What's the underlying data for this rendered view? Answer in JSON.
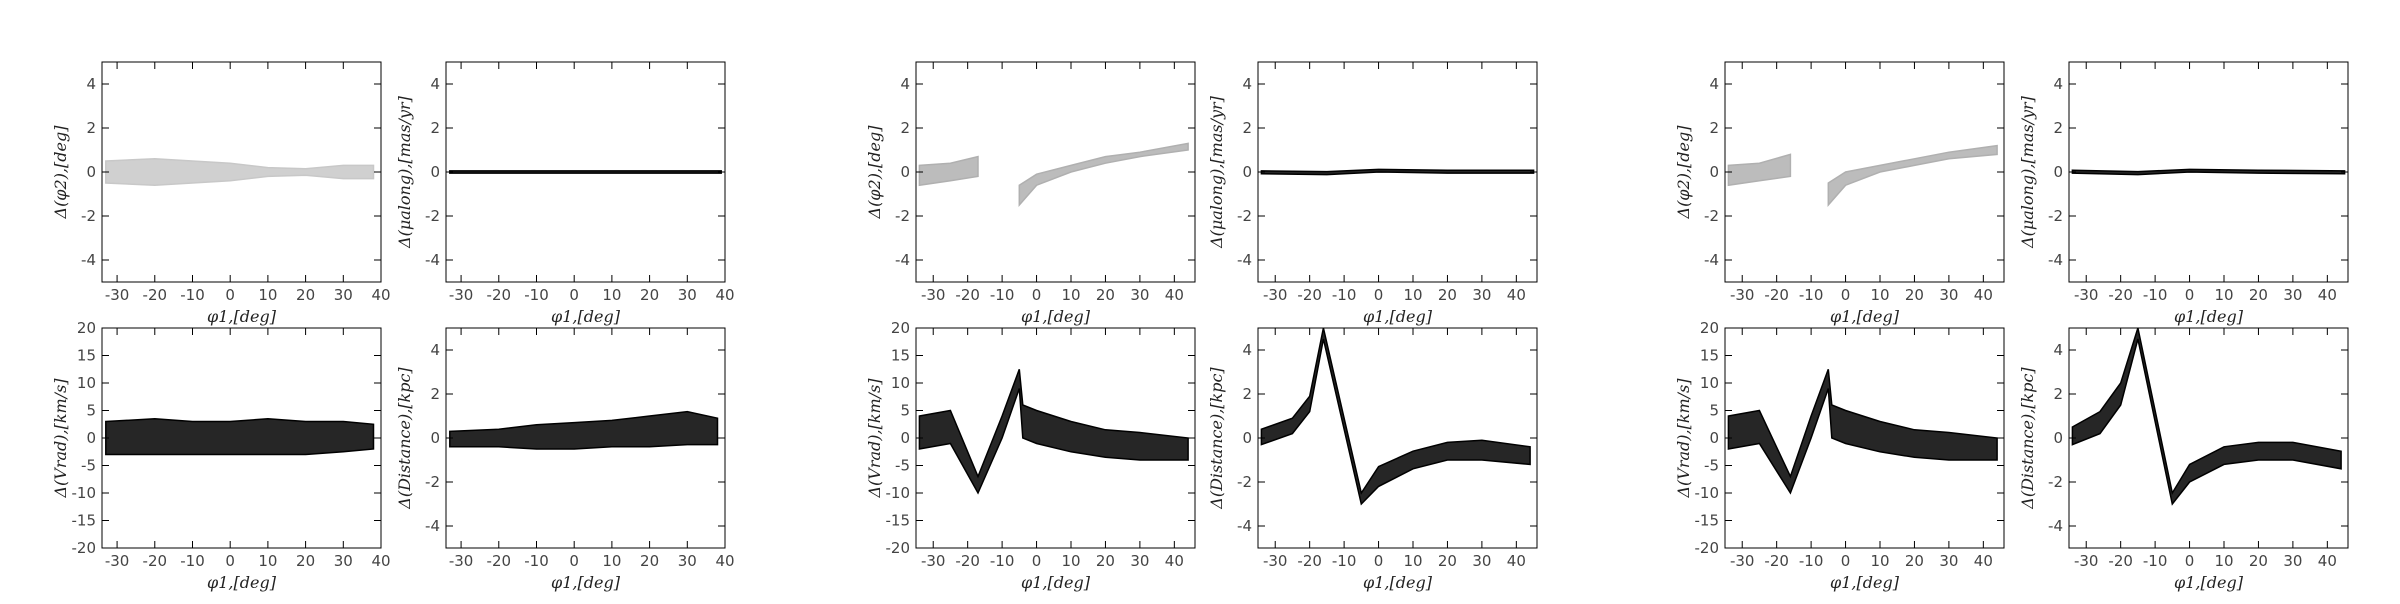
{
  "chart_data": [
    {
      "type": "band",
      "xlabel": "φ1,[deg]",
      "ylabel": "Δ(φ2),[deg]",
      "xlim": [
        -34,
        40
      ],
      "ylim": [
        -5,
        5
      ],
      "xticks": [
        -30,
        -20,
        -10,
        0,
        10,
        20,
        30,
        40
      ],
      "yticks": [
        -4,
        -2,
        0,
        2,
        4
      ],
      "color": "#c8c8c8",
      "x": [
        -33,
        -20,
        -10,
        0,
        10,
        20,
        30,
        38
      ],
      "lower": [
        -0.5,
        -0.6,
        -0.5,
        -0.4,
        -0.2,
        -0.15,
        -0.3,
        -0.3
      ],
      "upper": [
        0.5,
        0.6,
        0.5,
        0.4,
        0.2,
        0.15,
        0.3,
        0.3
      ]
    },
    {
      "type": "band",
      "xlabel": "φ1,[deg]",
      "ylabel": "Δ(μalong),[mas/yr]",
      "xlim": [
        -34,
        40
      ],
      "ylim": [
        -5,
        5
      ],
      "xticks": [
        -30,
        -20,
        -10,
        0,
        10,
        20,
        30,
        40
      ],
      "yticks": [
        -4,
        -2,
        0,
        2,
        4
      ],
      "color": "#000000",
      "x": [
        -33,
        0,
        39
      ],
      "lower": [
        -0.05,
        -0.05,
        -0.05
      ],
      "upper": [
        0.05,
        0.05,
        0.05
      ]
    },
    {
      "type": "band",
      "xlabel": "φ1,[deg]",
      "ylabel": "Δ(Vrad),[km/s]",
      "xlim": [
        -34,
        40
      ],
      "ylim": [
        -20,
        20
      ],
      "xticks": [
        -30,
        -20,
        -10,
        0,
        10,
        20,
        30,
        40
      ],
      "yticks": [
        -20,
        -15,
        -10,
        -5,
        0,
        5,
        10,
        15,
        20
      ],
      "color": "#000000",
      "x": [
        -33,
        -20,
        -10,
        0,
        10,
        20,
        30,
        38
      ],
      "lower": [
        -3,
        -3,
        -3,
        -3,
        -3,
        -3,
        -2.5,
        -2
      ],
      "upper": [
        3,
        3.5,
        3,
        3,
        3.5,
        3,
        3,
        2.5
      ]
    },
    {
      "type": "band",
      "xlabel": "φ1,[deg]",
      "ylabel": "Δ(Distance),[kpc]",
      "xlim": [
        -34,
        40
      ],
      "ylim": [
        -5,
        5
      ],
      "xticks": [
        -30,
        -20,
        -10,
        0,
        10,
        20,
        30,
        40
      ],
      "yticks": [
        -4,
        -2,
        0,
        2,
        4
      ],
      "color": "#000000",
      "x": [
        -33,
        -20,
        -10,
        0,
        10,
        20,
        30,
        38
      ],
      "lower": [
        -0.4,
        -0.4,
        -0.5,
        -0.5,
        -0.4,
        -0.4,
        -0.3,
        -0.3
      ],
      "upper": [
        0.3,
        0.4,
        0.6,
        0.7,
        0.8,
        1.0,
        1.2,
        0.9
      ]
    },
    {
      "type": "band",
      "xlabel": "φ1,[deg]",
      "ylabel": "Δ(φ2),[deg]",
      "xlim": [
        -35,
        46
      ],
      "ylim": [
        -5,
        5
      ],
      "xticks": [
        -30,
        -20,
        -10,
        0,
        10,
        20,
        30,
        40
      ],
      "yticks": [
        -4,
        -2,
        0,
        2,
        4
      ],
      "color": "#b0b0b0",
      "x": [
        -34,
        -25,
        -17,
        null,
        -5,
        0,
        10,
        20,
        30,
        44
      ],
      "lower": [
        -0.6,
        -0.4,
        -0.2,
        null,
        -1.5,
        -0.6,
        0,
        0.4,
        0.7,
        1.0
      ],
      "upper": [
        0.3,
        0.4,
        0.7,
        null,
        -0.6,
        -0.1,
        0.3,
        0.7,
        0.9,
        1.3
      ]
    },
    {
      "type": "band",
      "xlabel": "φ1,[deg]",
      "ylabel": "Δ(μalong),[mas/yr]",
      "xlim": [
        -35,
        46
      ],
      "ylim": [
        -5,
        5
      ],
      "xticks": [
        -30,
        -20,
        -10,
        0,
        10,
        20,
        30,
        40
      ],
      "yticks": [
        -4,
        -2,
        0,
        2,
        4
      ],
      "color": "#000000",
      "x": [
        -34,
        -15,
        0,
        20,
        45
      ],
      "lower": [
        -0.08,
        -0.12,
        0,
        -0.05,
        -0.05
      ],
      "upper": [
        0.05,
        0.02,
        0.12,
        0.08,
        0.08
      ]
    },
    {
      "type": "band",
      "xlabel": "φ1,[deg]",
      "ylabel": "Δ(Vrad),[km/s]",
      "xlim": [
        -35,
        46
      ],
      "ylim": [
        -20,
        20
      ],
      "xticks": [
        -30,
        -20,
        -10,
        0,
        10,
        20,
        30,
        40
      ],
      "yticks": [
        -20,
        -15,
        -10,
        -5,
        0,
        5,
        10,
        15,
        20
      ],
      "color": "#000000",
      "x": [
        -34,
        -25,
        -17,
        -10,
        -5,
        -4,
        0,
        10,
        20,
        30,
        44
      ],
      "lower": [
        -2,
        -1,
        -10,
        0,
        9,
        0,
        -1,
        -2.5,
        -3.5,
        -4,
        -4
      ],
      "upper": [
        4,
        5,
        -7,
        4,
        12.5,
        6,
        5,
        3,
        1.5,
        1,
        0
      ]
    },
    {
      "type": "band",
      "xlabel": "φ1,[deg]",
      "ylabel": "Δ(Distance),[kpc]",
      "xlim": [
        -35,
        46
      ],
      "ylim": [
        -5,
        5
      ],
      "xticks": [
        -30,
        -20,
        -10,
        0,
        10,
        20,
        30,
        40
      ],
      "yticks": [
        -4,
        -2,
        0,
        2,
        4
      ],
      "color": "#000000",
      "x": [
        -34,
        -25,
        -20,
        -16,
        -5,
        0,
        10,
        20,
        30,
        44
      ],
      "lower": [
        -0.3,
        0.2,
        1.2,
        4.5,
        -3.0,
        -2.2,
        -1.4,
        -1.0,
        -1.0,
        -1.2
      ],
      "upper": [
        0.4,
        0.9,
        1.9,
        5.0,
        -2.5,
        -1.3,
        -0.6,
        -0.2,
        -0.1,
        -0.4
      ]
    },
    {
      "type": "band",
      "xlabel": "φ1,[deg]",
      "ylabel": "Δ(φ2),[deg]",
      "xlim": [
        -35,
        46
      ],
      "ylim": [
        -5,
        5
      ],
      "xticks": [
        -30,
        -20,
        -10,
        0,
        10,
        20,
        30,
        40
      ],
      "yticks": [
        -4,
        -2,
        0,
        2,
        4
      ],
      "color": "#b0b0b0",
      "x": [
        -34,
        -25,
        -16,
        null,
        -5,
        0,
        10,
        20,
        30,
        44
      ],
      "lower": [
        -0.6,
        -0.4,
        -0.2,
        null,
        -1.5,
        -0.6,
        0,
        0.3,
        0.6,
        0.8
      ],
      "upper": [
        0.3,
        0.4,
        0.8,
        null,
        -0.5,
        0,
        0.3,
        0.6,
        0.9,
        1.2
      ]
    },
    {
      "type": "band",
      "xlabel": "φ1,[deg]",
      "ylabel": "Δ(μalong),[mas/yr]",
      "xlim": [
        -35,
        46
      ],
      "ylim": [
        -5,
        5
      ],
      "xticks": [
        -30,
        -20,
        -10,
        0,
        10,
        20,
        30,
        40
      ],
      "yticks": [
        -4,
        -2,
        0,
        2,
        4
      ],
      "color": "#000000",
      "x": [
        -34,
        -15,
        0,
        20,
        45
      ],
      "lower": [
        -0.05,
        -0.12,
        0,
        -0.05,
        -0.08
      ],
      "upper": [
        0.08,
        0.02,
        0.12,
        0.08,
        0.05
      ]
    },
    {
      "type": "band",
      "xlabel": "φ1,[deg]",
      "ylabel": "Δ(Vrad),[km/s]",
      "xlim": [
        -35,
        46
      ],
      "ylim": [
        -20,
        20
      ],
      "xticks": [
        -30,
        -20,
        -10,
        0,
        10,
        20,
        30,
        40
      ],
      "yticks": [
        -20,
        -15,
        -10,
        -5,
        0,
        5,
        10,
        15,
        20
      ],
      "color": "#000000",
      "x": [
        -34,
        -25,
        -16,
        -10,
        -5,
        -4,
        0,
        10,
        20,
        30,
        44
      ],
      "lower": [
        -2,
        -1,
        -10,
        0,
        9,
        0,
        -1,
        -2.5,
        -3.5,
        -4,
        -4
      ],
      "upper": [
        4,
        5,
        -7,
        4,
        12.5,
        6,
        5,
        3,
        1.5,
        1,
        0
      ]
    },
    {
      "type": "band",
      "xlabel": "φ1,[deg]",
      "ylabel": "Δ(Distance),[kpc]",
      "xlim": [
        -35,
        46
      ],
      "ylim": [
        -5,
        5
      ],
      "xticks": [
        -30,
        -20,
        -10,
        0,
        10,
        20,
        30,
        40
      ],
      "yticks": [
        -4,
        -2,
        0,
        2,
        4
      ],
      "color": "#000000",
      "x": [
        -34,
        -26,
        -20,
        -15,
        -5,
        0,
        10,
        20,
        30,
        44
      ],
      "lower": [
        -0.3,
        0.2,
        1.5,
        4.5,
        -3.0,
        -2.0,
        -1.2,
        -1.0,
        -1.0,
        -1.4
      ],
      "upper": [
        0.5,
        1.2,
        2.5,
        5.0,
        -2.5,
        -1.2,
        -0.4,
        -0.2,
        -0.2,
        -0.6
      ]
    }
  ]
}
